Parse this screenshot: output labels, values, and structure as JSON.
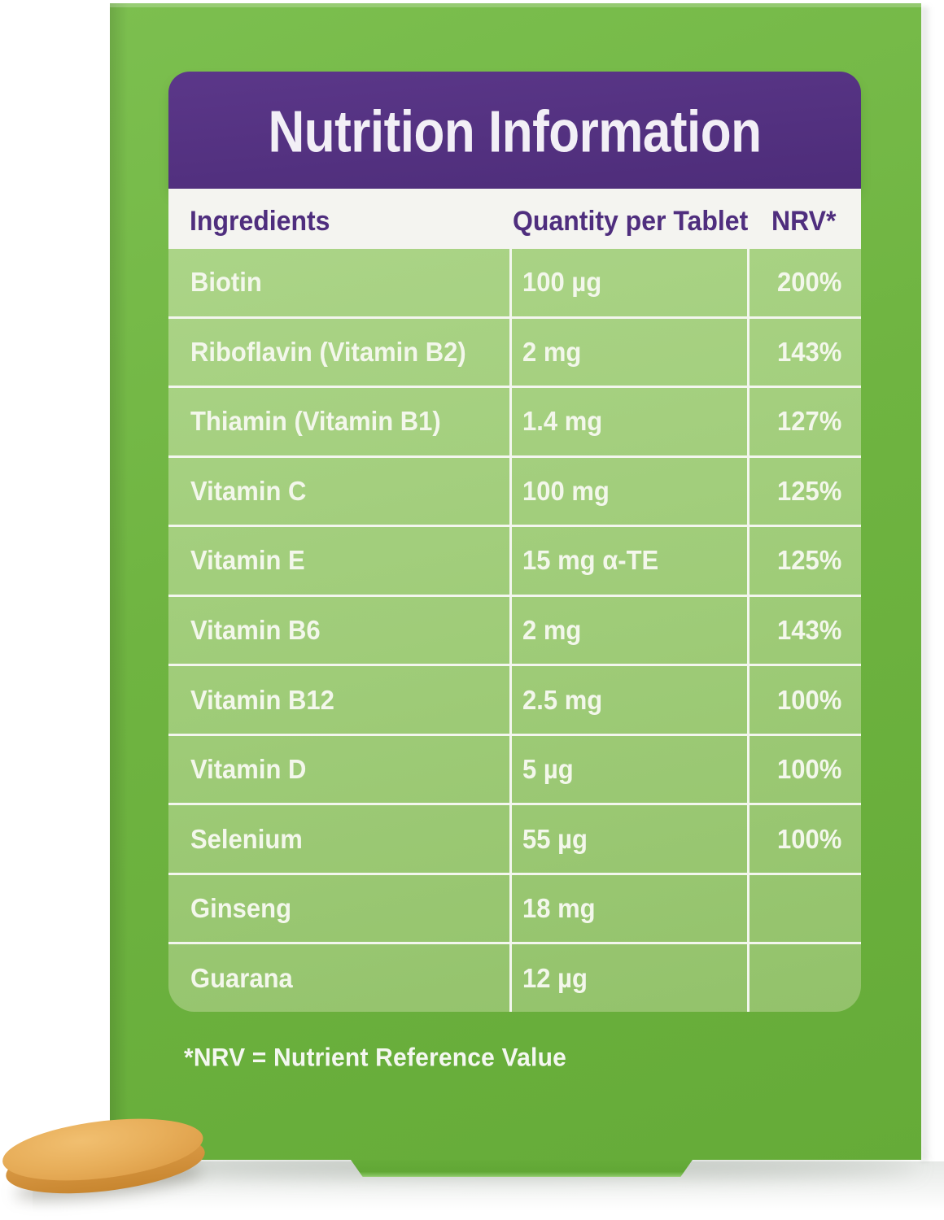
{
  "product_panel": {
    "title": "Nutrition Information",
    "table": {
      "columns": [
        "Ingredients",
        "Quantity per Tablet",
        "NRV*"
      ],
      "rows": [
        {
          "ingredient": "Biotin",
          "quantity": "100 µg",
          "nrv": "200%"
        },
        {
          "ingredient": "Riboflavin (Vitamin B2)",
          "quantity": "2 mg",
          "nrv": "143%"
        },
        {
          "ingredient": "Thiamin (Vitamin B1)",
          "quantity": "1.4 mg",
          "nrv": "127%"
        },
        {
          "ingredient": "Vitamin C",
          "quantity": "100 mg",
          "nrv": "125%"
        },
        {
          "ingredient": "Vitamin E",
          "quantity": "15 mg α-TE",
          "nrv": "125%"
        },
        {
          "ingredient": "Vitamin B6",
          "quantity": "2 mg",
          "nrv": "143%"
        },
        {
          "ingredient": "Vitamin B12",
          "quantity": "2.5 mg",
          "nrv": "100%"
        },
        {
          "ingredient": "Vitamin D",
          "quantity": "5 µg",
          "nrv": "100%"
        },
        {
          "ingredient": "Selenium",
          "quantity": "55 µg",
          "nrv": "100%"
        },
        {
          "ingredient": "Ginseng",
          "quantity": "18 mg",
          "nrv": ""
        },
        {
          "ingredient": "Guarana",
          "quantity": "12 µg",
          "nrv": ""
        }
      ]
    },
    "footnote": "*NRV = Nutrient Reference Value"
  },
  "colors": {
    "package_green": "#6FB441",
    "table_row_green": "#9FCB77",
    "brand_purple": "#533180",
    "header_band_bg": "#F4F4F0",
    "divider_white": "#F3F6EE",
    "text_on_green": "#F3F7EB",
    "title_text": "#F2EFF6",
    "tablet_orange": "#E4A751"
  }
}
